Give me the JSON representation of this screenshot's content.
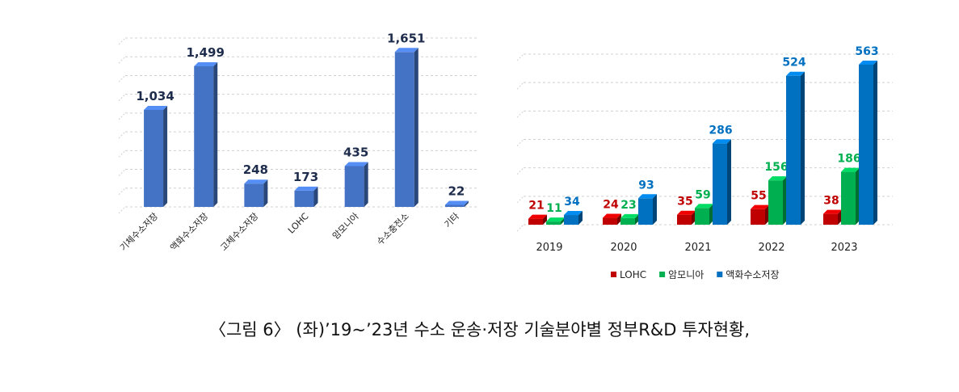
{
  "chart_data": [
    {
      "type": "bar",
      "title": "",
      "xlabel": "",
      "ylabel": "",
      "ylim": [
        0,
        1800
      ],
      "grid": true,
      "categories": [
        "기체수소저장",
        "액화수소저장",
        "고체수소저장",
        "LOHC",
        "암모니아",
        "수소충전소",
        "기타"
      ],
      "values": [
        1034,
        1499,
        248,
        173,
        435,
        1651,
        22
      ],
      "data_labels": [
        "1,034",
        "1,499",
        "248",
        "173",
        "435",
        "1,651",
        "22"
      ],
      "colors": {
        "bar": "#4472C4",
        "bar_side": "#2F4F94",
        "label": "#1F2D4D"
      }
    },
    {
      "type": "bar",
      "title": "",
      "xlabel": "",
      "ylabel": "",
      "ylim": [
        0,
        600
      ],
      "grid": true,
      "legend": "bottom",
      "categories": [
        "2019",
        "2020",
        "2021",
        "2022",
        "2023"
      ],
      "series": [
        {
          "name": "LOHC",
          "values": [
            21,
            24,
            35,
            55,
            38
          ],
          "color": "#C00000"
        },
        {
          "name": "암모니아",
          "values": [
            11,
            23,
            59,
            156,
            186
          ],
          "color": "#00B050"
        },
        {
          "name": "액화수소저장",
          "values": [
            34,
            93,
            286,
            524,
            563
          ],
          "color": "#0070C0"
        }
      ]
    }
  ],
  "caption": "〈그림 6〉 (좌)’19~’23년 수소 운송·저장 기술분야별 정부R&D 투자현황,"
}
